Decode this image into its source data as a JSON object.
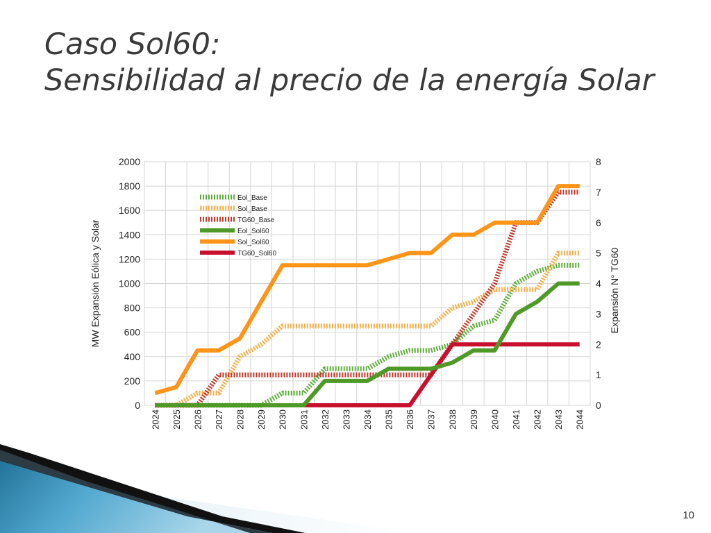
{
  "slide": {
    "title_line1": "Caso Sol60:",
    "title_line2": "Sensibilidad al precio de la energía Solar",
    "page_number": "10"
  },
  "chart_data": {
    "type": "line",
    "title": "",
    "xlabel": "",
    "ylabel": "MW Expansión Eólica y Solar",
    "y2label": "Expansión N° TG60",
    "x": [
      "2024",
      "2025",
      "2026",
      "2027",
      "2028",
      "2029",
      "2030",
      "2031",
      "2032",
      "2033",
      "2034",
      "2035",
      "2036",
      "2037",
      "2038",
      "2039",
      "2040",
      "2041",
      "2042",
      "2043",
      "2044"
    ],
    "ylim": [
      0,
      2000
    ],
    "yticks": [
      0,
      200,
      400,
      600,
      800,
      1000,
      1200,
      1400,
      1600,
      1800,
      2000
    ],
    "y2lim": [
      0,
      8
    ],
    "y2ticks": [
      0,
      1,
      2,
      3,
      4,
      5,
      6,
      7,
      8
    ],
    "grid": true,
    "legend_position": "top-left",
    "series": [
      {
        "name": "Eol_Base",
        "axis": "left",
        "style": "dotted",
        "color": "#5fae3c",
        "values": [
          0,
          0,
          0,
          0,
          0,
          0,
          100,
          100,
          300,
          300,
          300,
          400,
          450,
          450,
          500,
          650,
          700,
          1000,
          1100,
          1150,
          1150
        ]
      },
      {
        "name": "Sol_Base",
        "axis": "left",
        "style": "dotted",
        "color": "#f5b04a",
        "values": [
          0,
          0,
          100,
          100,
          400,
          500,
          650,
          650,
          650,
          650,
          650,
          650,
          650,
          650,
          800,
          850,
          950,
          950,
          950,
          1250,
          1250
        ]
      },
      {
        "name": "TG60_Base",
        "axis": "right",
        "style": "dotted",
        "color": "#c0392b",
        "values": [
          0,
          0,
          0,
          1,
          1,
          1,
          1,
          1,
          1,
          1,
          1,
          1,
          1,
          1,
          2,
          3,
          4,
          6,
          6,
          7,
          7
        ]
      },
      {
        "name": "Eol_Sol60",
        "axis": "left",
        "style": "solid",
        "color": "#4f9a26",
        "values": [
          0,
          0,
          0,
          0,
          0,
          0,
          0,
          0,
          200,
          200,
          200,
          300,
          300,
          300,
          350,
          450,
          450,
          750,
          850,
          1000,
          1000
        ]
      },
      {
        "name": "Sol_Sol60",
        "axis": "left",
        "style": "solid",
        "color": "#ff9418",
        "values": [
          100,
          150,
          450,
          450,
          550,
          850,
          1150,
          1150,
          1150,
          1150,
          1150,
          1200,
          1250,
          1250,
          1400,
          1400,
          1500,
          1500,
          1500,
          1800,
          1800
        ]
      },
      {
        "name": "TG60_Sol60",
        "axis": "right",
        "style": "solid",
        "color": "#c8102e",
        "values": [
          0,
          0,
          0,
          0,
          0,
          0,
          0,
          0,
          0,
          0,
          0,
          0,
          0,
          1,
          2,
          2,
          2,
          2,
          2,
          2,
          2
        ]
      }
    ]
  }
}
